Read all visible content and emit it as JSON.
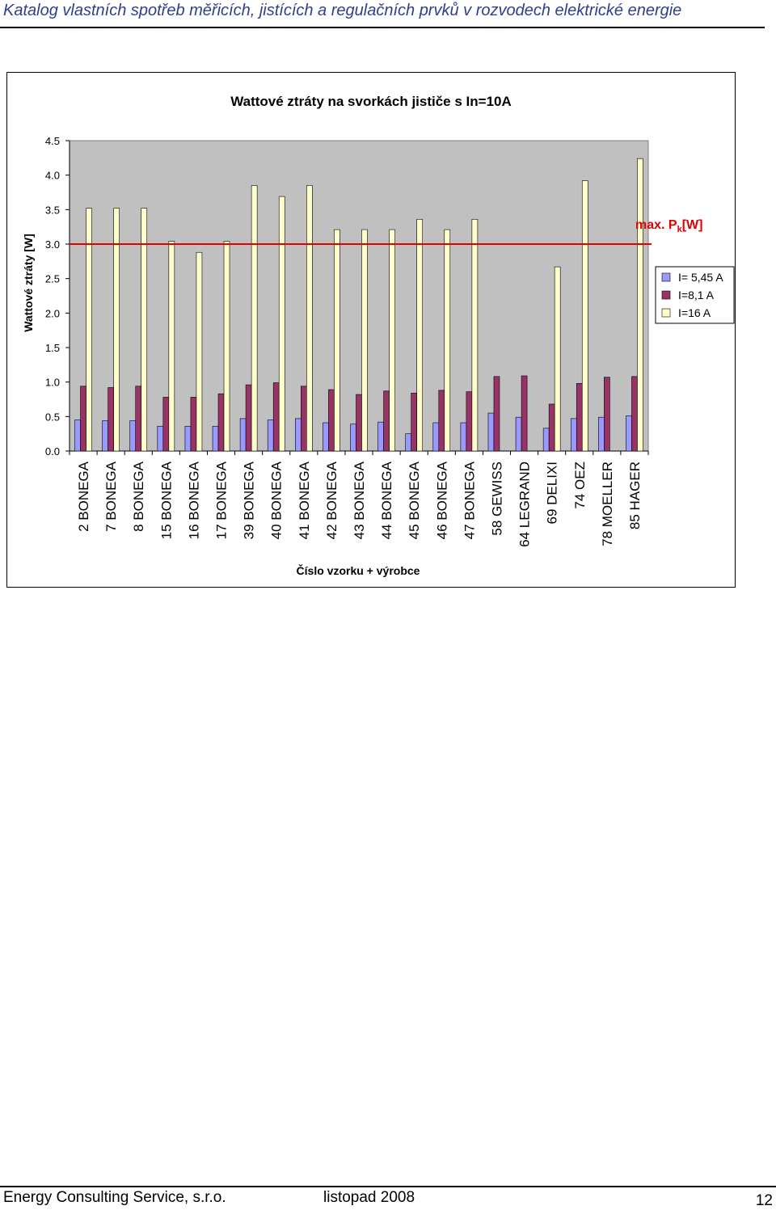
{
  "header": {
    "title": "Katalog vlastních spotřeb měřicích, jistících a regulačních prvků v rozvodech elektrické energie"
  },
  "footer": {
    "company": "Energy Consulting Service, s.r.o.",
    "date": "listopad 2008",
    "page": "12"
  },
  "colors": {
    "header_text": "#2f3f8f",
    "plot_bg": "#c0c0c0",
    "limit_line": "#e00000",
    "series": [
      "#9999ff",
      "#993366",
      "#ffffcc"
    ]
  },
  "chart_data": {
    "type": "bar",
    "title": "Wattové ztráty na svorkách jističe s In=10A",
    "xlabel": "Číslo vzorku + výrobce",
    "ylabel": "Wattové ztráty [W]",
    "ylim": [
      0,
      4.5
    ],
    "yticks": [
      "0.0",
      "0.5",
      "1.0",
      "1.5",
      "2.0",
      "2.5",
      "3.0",
      "3.5",
      "4.0",
      "4.5"
    ],
    "grid": false,
    "legend_position": "right",
    "categories": [
      "2 BONEGA",
      "7 BONEGA",
      "8 BONEGA",
      "15 BONEGA",
      "16 BONEGA",
      "17 BONEGA",
      "39 BONEGA",
      "40 BONEGA",
      "41 BONEGA",
      "42 BONEGA",
      "43 BONEGA",
      "44 BONEGA",
      "45 BONEGA",
      "46 BONEGA",
      "47 BONEGA",
      "58 GEWISS",
      "64 LEGRAND",
      "69 DELIXI",
      "74 OEZ",
      "78 MOELLER",
      "85 HAGER"
    ],
    "series": [
      {
        "name": "I= 5,45 A",
        "values": [
          0.45,
          0.44,
          0.44,
          0.36,
          0.36,
          0.36,
          0.47,
          0.45,
          0.47,
          0.41,
          0.39,
          0.42,
          0.25,
          0.41,
          0.41,
          0.55,
          0.49,
          0.33,
          0.47,
          0.49,
          0.51
        ]
      },
      {
        "name": "I=8,1 A",
        "values": [
          0.94,
          0.92,
          0.94,
          0.78,
          0.78,
          0.83,
          0.96,
          0.99,
          0.94,
          0.89,
          0.82,
          0.87,
          0.84,
          0.88,
          0.86,
          1.08,
          1.09,
          0.68,
          0.98,
          1.07,
          1.08
        ]
      },
      {
        "name": "I=16 A",
        "values": [
          3.52,
          3.52,
          3.52,
          3.04,
          2.88,
          3.04,
          3.85,
          3.69,
          3.85,
          3.21,
          3.21,
          3.21,
          3.36,
          3.21,
          3.36,
          null,
          null,
          2.67,
          3.92,
          null,
          4.24
        ]
      }
    ],
    "annotation": {
      "text_main": "max. P",
      "text_sub": "k",
      "text_unit": "[W]",
      "value": 3.0
    }
  }
}
